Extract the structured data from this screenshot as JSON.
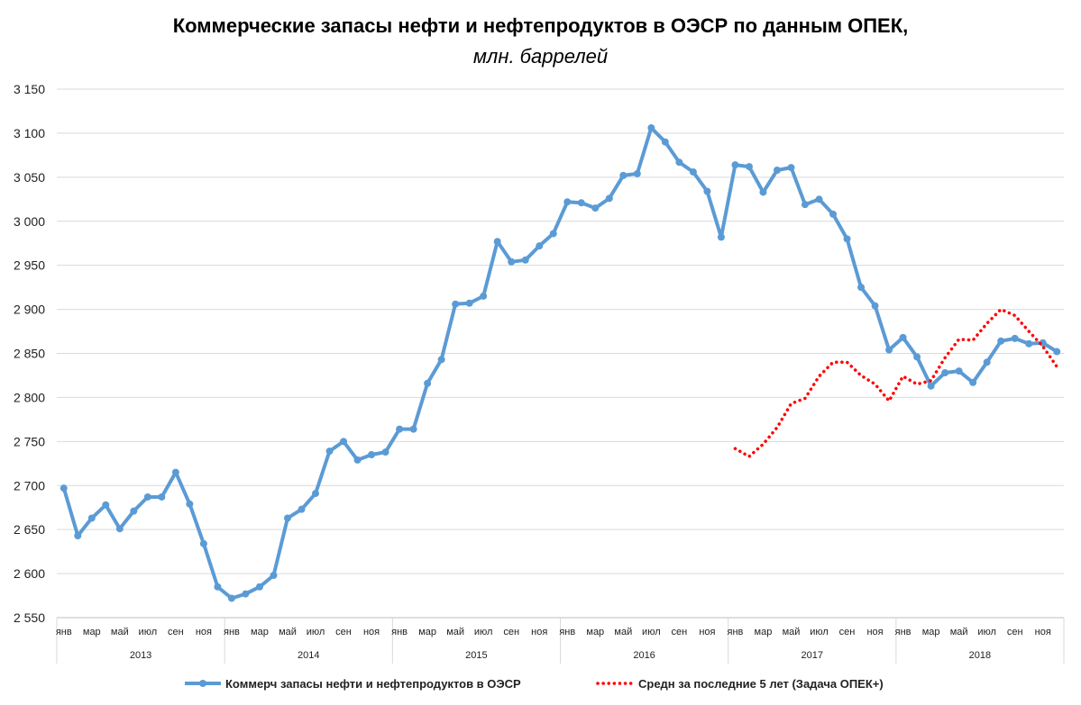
{
  "chart_data": {
    "type": "line",
    "title": "Коммерческие запасы нефти и нефтепродуктов в ОЭСР по данным ОПЕК,",
    "subtitle": "млн. баррелей",
    "xlabel": "",
    "ylabel": "",
    "ylim": [
      2550,
      3150
    ],
    "yticks": [
      3150,
      3100,
      3050,
      3000,
      2950,
      2900,
      2850,
      2800,
      2750,
      2700,
      2650,
      2600,
      2550
    ],
    "ytick_labels": [
      "3 150",
      "3 100",
      "3 050",
      "3 000",
      "2 950",
      "2 900",
      "2 850",
      "2 800",
      "2 750",
      "2 700",
      "2 650",
      "2 600",
      "2 550"
    ],
    "grid": true,
    "legend_position": "bottom",
    "month_labels": [
      "янв",
      "мар",
      "май",
      "июл",
      "сен",
      "ноя"
    ],
    "years": [
      "2013",
      "2014",
      "2015",
      "2016",
      "2017",
      "2018"
    ],
    "series": [
      {
        "name": "Коммерч запасы нефти и нефтепродуктов в ОЭСР",
        "color": "#5B9BD5",
        "style": "solid-markers",
        "start_index": 0,
        "values": [
          2697,
          2643,
          2663,
          2678,
          2651,
          2671,
          2687,
          2687,
          2715,
          2679,
          2634,
          2585,
          2572,
          2577,
          2585,
          2598,
          2663,
          2673,
          2691,
          2739,
          2750,
          2729,
          2735,
          2738,
          2764,
          2764,
          2816,
          2843,
          2906,
          2907,
          2915,
          2977,
          2954,
          2956,
          2972,
          2986,
          3022,
          3021,
          3015,
          3026,
          3052,
          3054,
          3106,
          3090,
          3067,
          3056,
          3034,
          2982,
          3064,
          3062,
          3033,
          3058,
          3061,
          3019,
          3025,
          3008,
          2980,
          2925,
          2904,
          2854,
          2868,
          2846,
          2813,
          2828,
          2830,
          2817,
          2840,
          2864,
          2867,
          2861,
          2862,
          2852
        ]
      },
      {
        "name": "Средн за последние 5 лет (Задача ОПЕК+)",
        "color": "#FF0000",
        "style": "dotted",
        "start_index": 48,
        "values": [
          2742,
          2733,
          2747,
          2766,
          2793,
          2799,
          2824,
          2840,
          2840,
          2825,
          2815,
          2796,
          2824,
          2815,
          2819,
          2845,
          2866,
          2865,
          2884,
          2900,
          2893,
          2875,
          2858,
          2835
        ]
      }
    ]
  }
}
